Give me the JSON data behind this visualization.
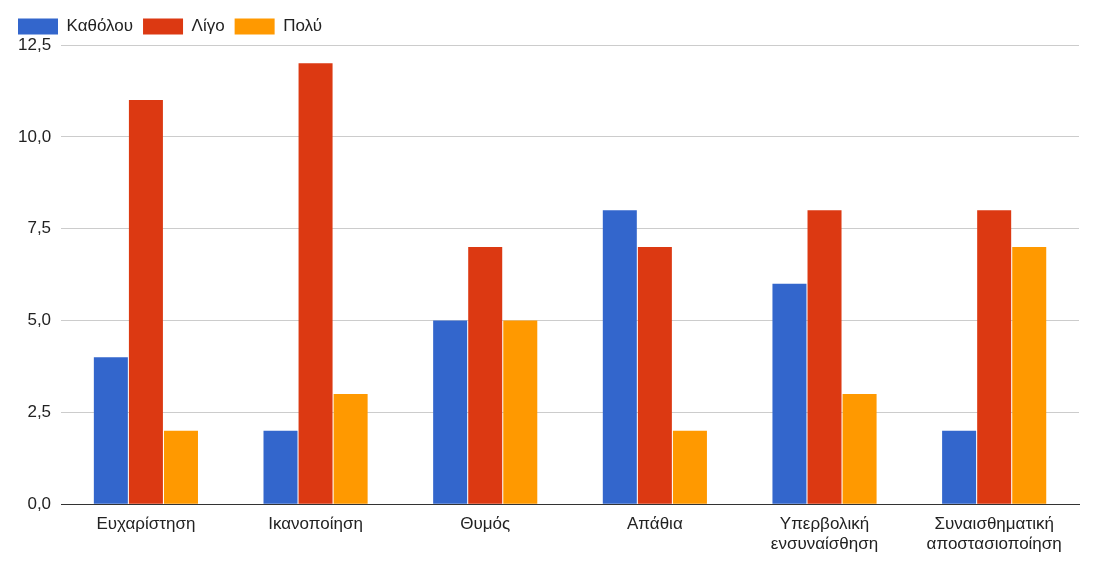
{
  "chart_data": {
    "type": "bar",
    "categories": [
      "Ευχαρίστηση",
      "Ικανοποίηση",
      "Θυμός",
      "Απάθια",
      "Υπερβολική ενσυναίσθηση",
      "Συναισθηματική αποστασιοποίηση"
    ],
    "series": [
      {
        "name": "Καθόλου",
        "color": "#3366cc",
        "values": [
          4,
          2,
          5,
          8,
          6,
          2
        ]
      },
      {
        "name": "Λίγο",
        "color": "#dc3912",
        "values": [
          11,
          12,
          7,
          7,
          8,
          8
        ]
      },
      {
        "name": "Πολύ",
        "color": "#ff9900",
        "values": [
          2,
          3,
          5,
          2,
          3,
          7
        ]
      }
    ],
    "ylim": [
      0,
      12.5
    ],
    "yticks": [
      {
        "value": 0,
        "label": "0,0"
      },
      {
        "value": 2.5,
        "label": "2,5"
      },
      {
        "value": 5,
        "label": "5,0"
      },
      {
        "value": 7.5,
        "label": "7,5"
      },
      {
        "value": 10,
        "label": "10,0"
      },
      {
        "value": 12.5,
        "label": "12,5"
      }
    ],
    "grid": "y",
    "legend": "top left"
  }
}
